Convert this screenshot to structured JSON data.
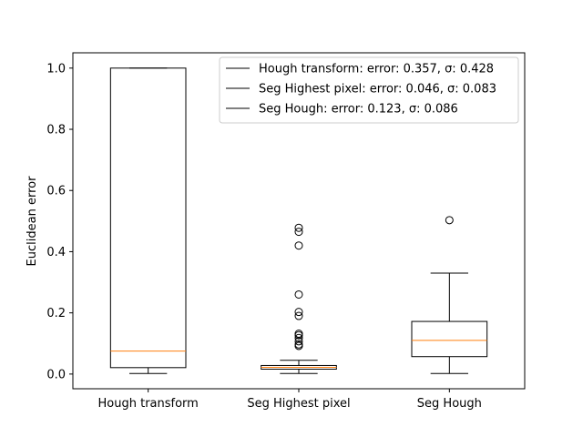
{
  "chart_data": {
    "type": "box",
    "title": "",
    "xlabel": "",
    "ylabel": "Euclidean error",
    "ylim": [
      -0.048,
      1.05
    ],
    "yticks": [
      0.0,
      0.2,
      0.4,
      0.6,
      0.8,
      1.0
    ],
    "ytick_labels": [
      "0.0",
      "0.2",
      "0.4",
      "0.6",
      "0.8",
      "1.0"
    ],
    "categories": [
      "Hough transform",
      "Seg Highest pixel",
      "Seg Hough"
    ],
    "boxes": [
      {
        "category": "Hough transform",
        "whisker_low": 0.002,
        "q1": 0.021,
        "median": 0.075,
        "q3": 1.0,
        "whisker_high": 1.0,
        "fliers": []
      },
      {
        "category": "Seg Highest pixel",
        "whisker_low": 0.002,
        "q1": 0.016,
        "median": 0.022,
        "q3": 0.028,
        "whisker_high": 0.045,
        "fliers": [
          0.092,
          0.097,
          0.107,
          0.118,
          0.127,
          0.132,
          0.19,
          0.203,
          0.26,
          0.42,
          0.465,
          0.478
        ]
      },
      {
        "category": "Seg Hough",
        "whisker_low": 0.002,
        "q1": 0.057,
        "median": 0.11,
        "q3": 0.172,
        "whisker_high": 0.33,
        "fliers": [
          0.503
        ]
      }
    ],
    "legend": {
      "location": "upper right",
      "entries": [
        "Hough transform: error: 0.357, σ: 0.428",
        "Seg Highest pixel: error: 0.046, σ: 0.083",
        "Seg Hough: error: 0.123, σ: 0.086"
      ]
    },
    "colors": {
      "box": "#000000",
      "median": "#ff7f0e",
      "flier": "#000000",
      "legend_line": "#000000"
    }
  }
}
